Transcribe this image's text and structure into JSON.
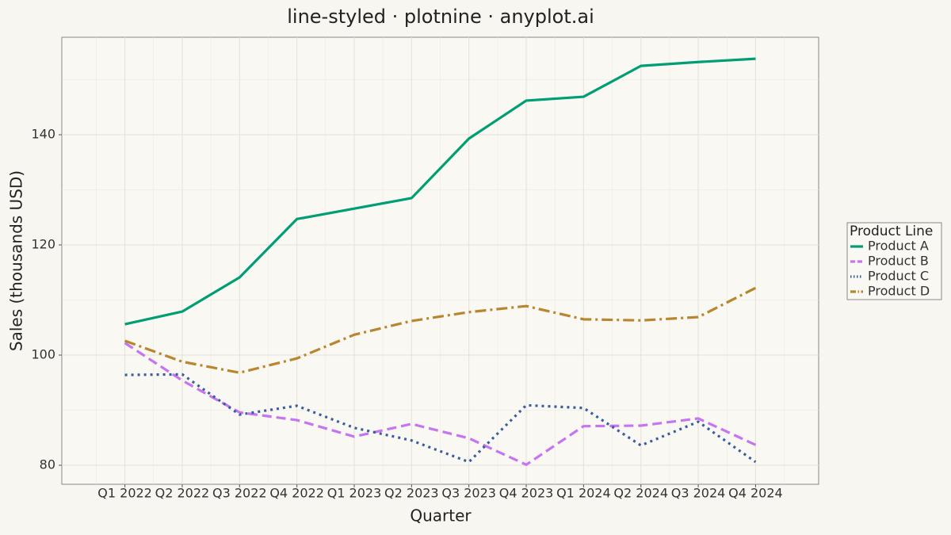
{
  "chart_data": {
    "type": "line",
    "title": "line-styled · plotnine · anyplot.ai",
    "x_label": "Quarter",
    "y_label": "Sales (thousands USD)",
    "legend_title": "Product Line",
    "legend_position": "right",
    "grid": true,
    "categories": [
      "Q1 2022",
      "Q2 2022",
      "Q3 2022",
      "Q4 2022",
      "Q1 2023",
      "Q2 2023",
      "Q3 2023",
      "Q4 2023",
      "Q1 2024",
      "Q2 2024",
      "Q3 2024",
      "Q4 2024"
    ],
    "ylim": [
      76.55,
      157.7
    ],
    "yticks": [
      80,
      100,
      120,
      140
    ],
    "y_minor_ticks": [
      90,
      110,
      130,
      150
    ],
    "series": [
      {
        "name": "Product A",
        "color": "#009e73",
        "linestyle": "solid",
        "values": [
          105.6,
          107.9,
          114.1,
          124.7,
          126.6,
          128.5,
          139.3,
          146.2,
          146.9,
          152.5,
          153.2,
          153.8
        ]
      },
      {
        "name": "Product B",
        "color": "#c774f0",
        "linestyle": "dashed",
        "values": [
          102.2,
          95.4,
          89.6,
          88.2,
          85.2,
          87.5,
          84.9,
          80.1,
          87.1,
          87.2,
          88.5,
          83.7
        ]
      },
      {
        "name": "Product C",
        "color": "#3a5da0",
        "linestyle": "dotted",
        "values": [
          96.4,
          96.5,
          89.2,
          90.8,
          86.8,
          84.5,
          80.6,
          90.9,
          90.4,
          83.6,
          87.9,
          80.6
        ]
      },
      {
        "name": "Product D",
        "color": "#b8862f",
        "linestyle": "dashdot",
        "values": [
          102.6,
          98.8,
          96.8,
          99.4,
          103.7,
          106.2,
          107.8,
          108.9,
          106.5,
          106.3,
          106.9,
          112.2
        ]
      }
    ]
  }
}
